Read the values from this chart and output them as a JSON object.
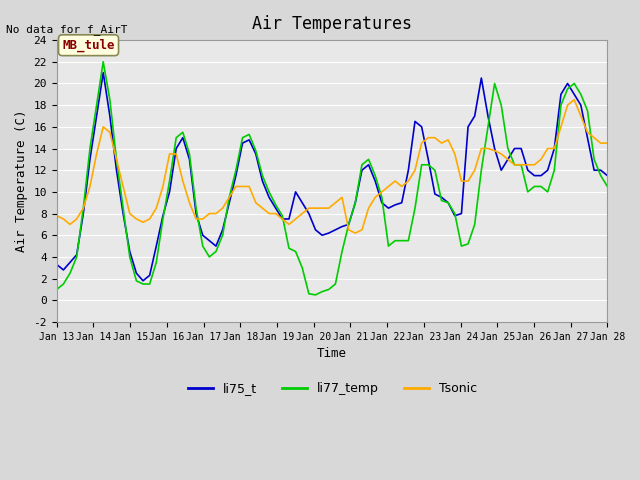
{
  "title": "Air Temperatures",
  "subtitle": "No data for f_AirT",
  "xlabel": "Time",
  "ylabel": "Air Temperature (C)",
  "legend_label": "MB_tule",
  "series_labels": [
    "li75_t",
    "li77_temp",
    "Tsonic"
  ],
  "series_colors": [
    "#0000cc",
    "#00cc00",
    "#ffaa00"
  ],
  "ylim": [
    -2,
    24
  ],
  "xtick_labels": [
    "Jan 13",
    "Jan 14",
    "Jan 15",
    "Jan 16",
    "Jan 17",
    "Jan 18",
    "Jan 19",
    "Jan 20",
    "Jan 21",
    "Jan 22",
    "Jan 23",
    "Jan 24",
    "Jan 25",
    "Jan 26",
    "Jan 27",
    "Jan 28"
  ],
  "background_color": "#e8e8e8",
  "plot_bg_color": "#e8e8e8",
  "li75_t": [
    3.3,
    2.8,
    3.5,
    4.2,
    8.0,
    13.0,
    17.0,
    21.0,
    17.0,
    12.0,
    8.0,
    4.5,
    2.5,
    1.8,
    2.3,
    5.0,
    7.8,
    10.0,
    14.0,
    15.0,
    13.0,
    8.0,
    6.0,
    5.5,
    5.0,
    6.5,
    9.0,
    11.5,
    14.5,
    14.8,
    13.5,
    11.0,
    9.5,
    8.5,
    7.5,
    7.5,
    10.0,
    9.0,
    8.0,
    6.5,
    6.0,
    6.2,
    6.5,
    6.8,
    7.0,
    9.0,
    12.0,
    12.5,
    11.0,
    9.0,
    8.5,
    8.8,
    9.0,
    12.0,
    16.5,
    16.0,
    13.0,
    9.8,
    9.5,
    9.0,
    7.8,
    8.0,
    16.0,
    17.0,
    20.5,
    17.0,
    14.0,
    12.0,
    13.0,
    14.0,
    14.0,
    12.0,
    11.5,
    11.5,
    12.0,
    14.0,
    19.0,
    20.0,
    19.0,
    18.0,
    15.0,
    12.0,
    12.0,
    11.5
  ],
  "li77_temp": [
    1.0,
    1.5,
    2.5,
    4.0,
    8.5,
    14.0,
    18.0,
    22.0,
    18.5,
    13.0,
    8.5,
    4.0,
    1.8,
    1.5,
    1.5,
    3.5,
    7.5,
    11.0,
    15.0,
    15.5,
    13.5,
    8.5,
    5.0,
    4.0,
    4.5,
    6.0,
    9.5,
    12.0,
    15.0,
    15.3,
    13.8,
    11.5,
    10.0,
    8.8,
    7.8,
    4.8,
    4.5,
    3.0,
    0.6,
    0.5,
    0.8,
    1.0,
    1.5,
    4.5,
    7.0,
    9.0,
    12.5,
    13.0,
    11.5,
    9.5,
    5.0,
    5.5,
    5.5,
    5.5,
    8.5,
    12.5,
    12.5,
    12.0,
    9.2,
    9.0,
    8.0,
    5.0,
    5.2,
    7.0,
    12.0,
    16.0,
    20.0,
    18.0,
    14.0,
    12.5,
    12.5,
    10.0,
    10.5,
    10.5,
    10.0,
    12.0,
    18.0,
    19.5,
    20.0,
    19.0,
    17.5,
    13.0,
    11.5,
    10.5
  ],
  "Tsonic": [
    7.8,
    7.5,
    7.0,
    7.5,
    8.5,
    10.5,
    13.5,
    16.0,
    15.5,
    13.0,
    10.5,
    8.0,
    7.5,
    7.2,
    7.5,
    8.5,
    10.5,
    13.5,
    13.5,
    11.0,
    9.0,
    7.5,
    7.5,
    8.0,
    8.0,
    8.5,
    9.5,
    10.5,
    10.5,
    10.5,
    9.0,
    8.5,
    8.0,
    8.0,
    7.5,
    7.0,
    7.5,
    8.0,
    8.5,
    8.5,
    8.5,
    8.5,
    9.0,
    9.5,
    6.5,
    6.2,
    6.5,
    8.5,
    9.5,
    10.0,
    10.5,
    11.0,
    10.5,
    11.0,
    12.0,
    14.5,
    15.0,
    15.0,
    14.5,
    14.8,
    13.5,
    11.0,
    11.0,
    12.0,
    14.0,
    14.0,
    13.8,
    13.5,
    13.0,
    12.5,
    12.5,
    12.5,
    12.5,
    13.0,
    14.0,
    14.0,
    16.0,
    18.0,
    18.5,
    17.0,
    15.5,
    15.0,
    14.5,
    14.5
  ]
}
